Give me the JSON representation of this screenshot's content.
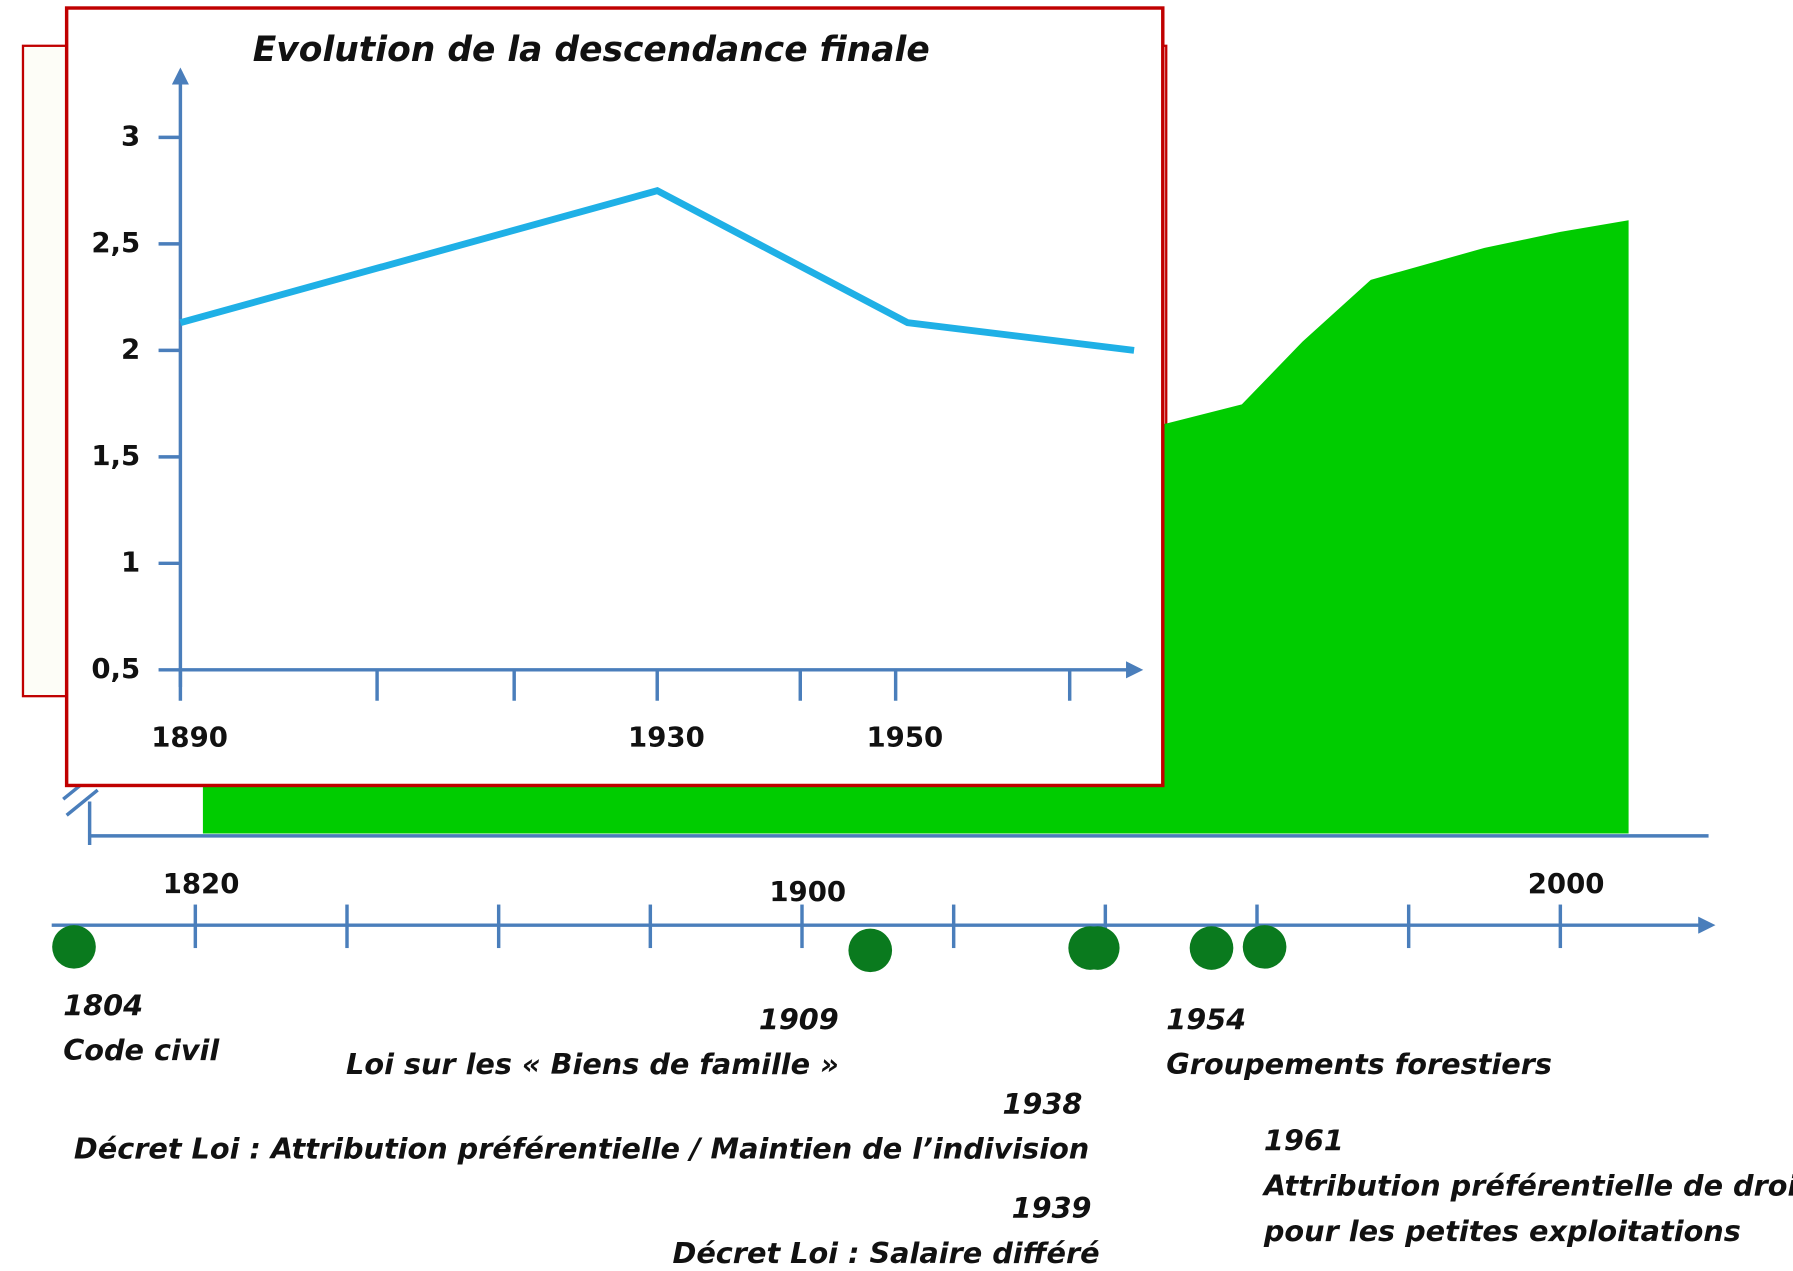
{
  "chart_data": [
    {
      "type": "timeline",
      "area": {
        "color": "#00cc00",
        "x": [
          1821,
          1900,
          1948,
          1958,
          1966,
          1975,
          1990,
          2000,
          2009
        ],
        "values": [
          3.0,
          3.5,
          3.85,
          4.03,
          4.62,
          5.2,
          5.5,
          5.65,
          5.76
        ]
      },
      "ylim": [
        0,
        6
      ],
      "xlim": [
        1800,
        2015
      ],
      "xticks": [
        {
          "value": 1820,
          "label": "1820"
        },
        {
          "value": 1840,
          "label": null
        },
        {
          "value": 1860,
          "label": null
        },
        {
          "value": 1880,
          "label": null
        },
        {
          "value": 1900,
          "label": "1900"
        },
        {
          "value": 1920,
          "label": null
        },
        {
          "value": 1940,
          "label": null
        },
        {
          "value": 1960,
          "label": null
        },
        {
          "value": 1980,
          "label": null
        },
        {
          "value": 2000,
          "label": "2000"
        }
      ],
      "dot_color": "#0a7a1e",
      "events": [
        {
          "year": 1804,
          "label": [
            "Code civil"
          ]
        },
        {
          "year": 1909,
          "label": [
            "Loi sur les « Biens de famille »"
          ]
        },
        {
          "year": 1938,
          "label": [
            "Décret Loi : Attribution préférentielle / Maintien de l’indivision"
          ]
        },
        {
          "year": 1939,
          "label": [
            "Décret Loi : Salaire différé"
          ]
        },
        {
          "year": 1954,
          "label": [
            "Groupements forestiers"
          ]
        },
        {
          "year": 1961,
          "label": [
            "Attribution préférentielle de droit",
            "pour les petites exploitations"
          ]
        }
      ]
    },
    {
      "type": "line",
      "title": "Evolution de la descendance finale",
      "x": [
        1890,
        1930,
        1951,
        1970
      ],
      "series": [
        {
          "name": null,
          "color": "#1fb0e6",
          "values": [
            2.13,
            2.75,
            2.13,
            2.0
          ]
        }
      ],
      "xlim": [
        1890,
        1970
      ],
      "xticks": [
        1890,
        {
          "value": 1906.5,
          "label": null
        },
        {
          "value": 1918,
          "label": null
        },
        1930,
        {
          "value": 1942,
          "label": null
        },
        1950,
        {
          "value": 1964.6,
          "label": null
        }
      ],
      "ylim": [
        0.5,
        3
      ],
      "yticks": [
        {
          "value": 0.5,
          "label": "0,5"
        },
        1,
        {
          "value": 1.5,
          "label": "1,5"
        },
        2,
        {
          "value": 2.5,
          "label": "2,5"
        },
        3
      ]
    }
  ]
}
